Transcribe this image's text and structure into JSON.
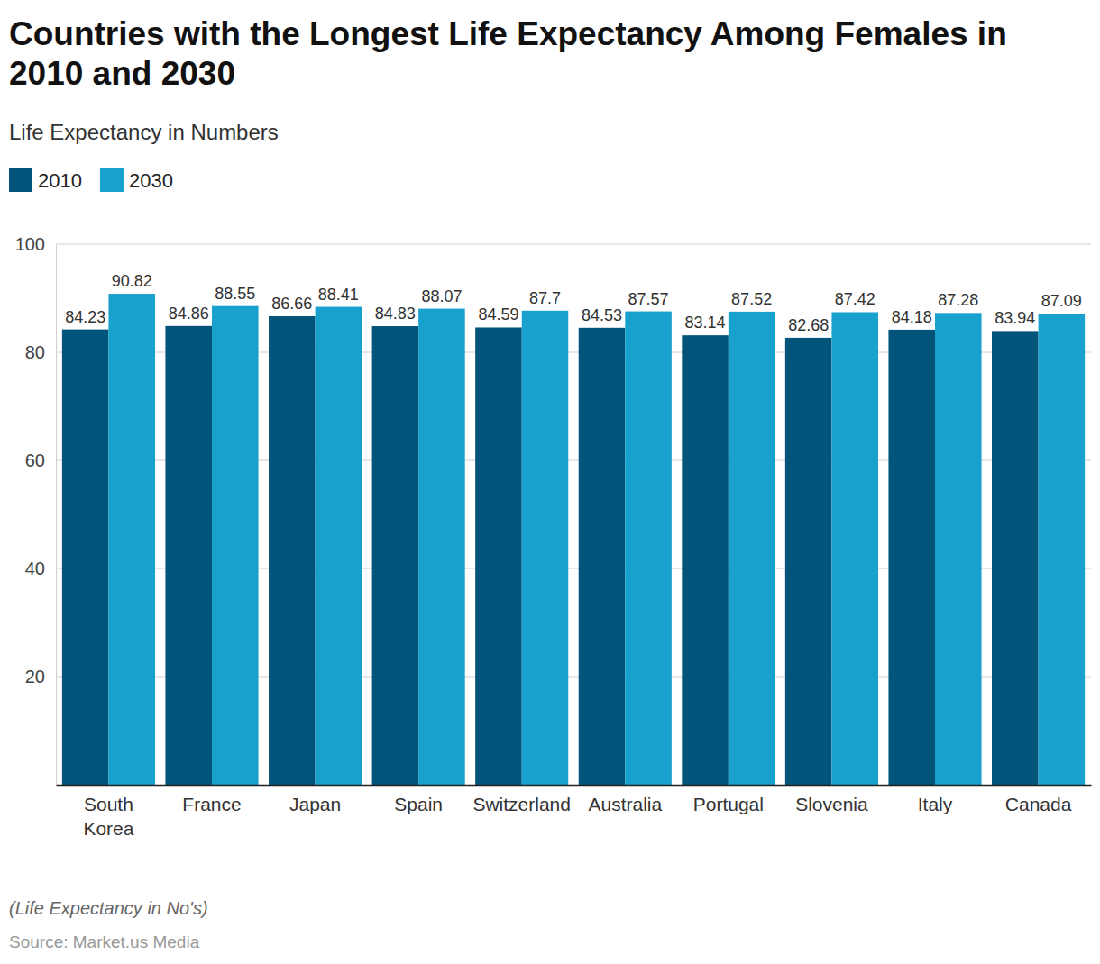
{
  "chart_data": {
    "type": "bar",
    "title": "Countries with the Longest Life Expectancy Among Females in 2010 and 2030",
    "subtitle": "Life Expectancy in Numbers",
    "footnote": "(Life Expectancy in No's)",
    "source": "Source: Market.us Media",
    "categories": [
      "South Korea",
      "France",
      "Japan",
      "Spain",
      "Switzerland",
      "Australia",
      "Portugal",
      "Slovenia",
      "Italy",
      "Canada"
    ],
    "series": [
      {
        "name": "2010",
        "color": "#03547a",
        "values": [
          84.23,
          84.86,
          86.66,
          84.83,
          84.59,
          84.53,
          83.14,
          82.68,
          84.18,
          83.94
        ]
      },
      {
        "name": "2030",
        "color": "#18a1cd",
        "values": [
          90.82,
          88.55,
          88.41,
          88.07,
          87.7,
          87.57,
          87.52,
          87.42,
          87.28,
          87.09
        ]
      }
    ],
    "ylim": [
      0,
      100
    ],
    "yticks": [
      20,
      40,
      60,
      80,
      100
    ],
    "grid": true,
    "legend": "top-left",
    "data_labels": true
  }
}
